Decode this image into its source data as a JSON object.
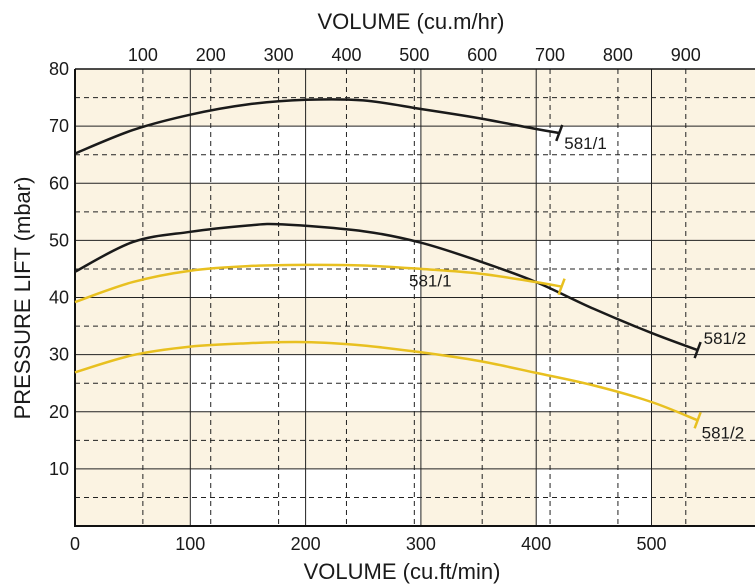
{
  "chart_data": {
    "type": "line",
    "title": "",
    "x_top_label": "VOLUME (cu.m/hr)",
    "x_bottom_label": "VOLUME (cu.ft/min)",
    "ylabel": "PRESSURE LIFT (mbar)",
    "xlim": [
      0,
      590
    ],
    "ylim": [
      0,
      80
    ],
    "x_bottom_ticks": [
      0,
      100,
      200,
      300,
      400,
      500
    ],
    "x_top_ticks": [
      100,
      200,
      300,
      400,
      500,
      600,
      700,
      800,
      900
    ],
    "y_ticks": [
      10,
      20,
      30,
      40,
      50,
      60,
      70,
      80
    ],
    "grid": true,
    "colors": {
      "black_curve": "#1a1a1a",
      "yellow_curve": "#e8c020",
      "band": "#fbf3e2",
      "grid": "#222222"
    },
    "series": [
      {
        "name": "581/1",
        "color": "black",
        "x": [
          0,
          50,
          100,
          150,
          200,
          250,
          300,
          350,
          400,
          420
        ],
        "y": [
          65.2,
          69.3,
          72.0,
          73.8,
          74.6,
          74.5,
          73.0,
          71.4,
          69.5,
          68.8
        ]
      },
      {
        "name": "581/2",
        "color": "black",
        "x": [
          0,
          50,
          100,
          150,
          180,
          250,
          300,
          350,
          400,
          450,
          500,
          540
        ],
        "y": [
          44.5,
          49.7,
          51.5,
          52.6,
          52.8,
          51.6,
          49.6,
          46.4,
          42.7,
          38.0,
          33.8,
          30.8
        ]
      },
      {
        "name": "581/1",
        "color": "yellow",
        "x": [
          0,
          50,
          100,
          150,
          200,
          250,
          300,
          350,
          400,
          422
        ],
        "y": [
          39.2,
          42.7,
          44.7,
          45.5,
          45.7,
          45.6,
          45.0,
          44.2,
          42.7,
          41.9
        ]
      },
      {
        "name": "581/2",
        "color": "yellow",
        "x": [
          0,
          50,
          100,
          150,
          200,
          250,
          300,
          350,
          400,
          450,
          500,
          540
        ],
        "y": [
          26.9,
          29.9,
          31.4,
          32.0,
          32.2,
          31.6,
          30.4,
          28.9,
          26.8,
          24.6,
          21.7,
          18.5
        ]
      }
    ]
  }
}
